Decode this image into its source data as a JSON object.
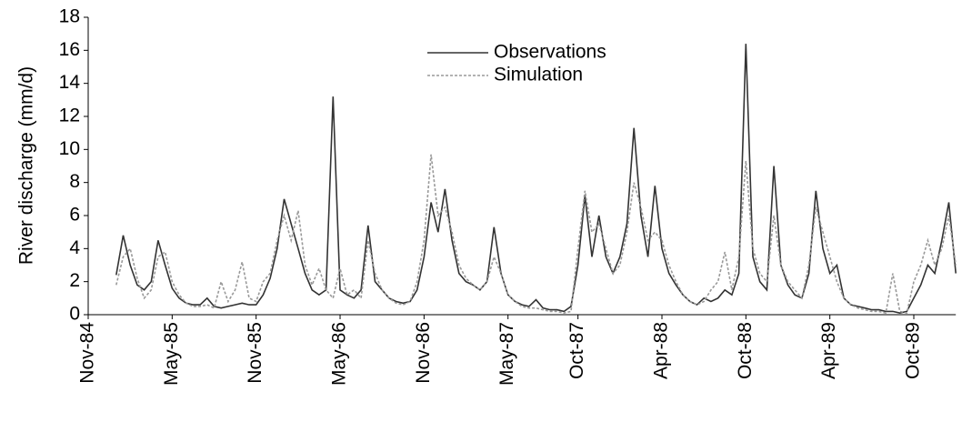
{
  "chart_data": {
    "type": "line",
    "y_label": "River discharge (mm/d)",
    "categories": [
      "Nov-84",
      null,
      null,
      null,
      null,
      null,
      null,
      null,
      null,
      null,
      null,
      null,
      "May-85",
      null,
      null,
      null,
      null,
      null,
      null,
      null,
      null,
      null,
      null,
      null,
      "Nov-85",
      null,
      null,
      null,
      null,
      null,
      null,
      null,
      null,
      null,
      null,
      null,
      "May-86",
      null,
      null,
      null,
      null,
      null,
      null,
      null,
      null,
      null,
      null,
      null,
      "Nov-86",
      null,
      null,
      null,
      null,
      null,
      null,
      null,
      null,
      null,
      null,
      null,
      "May-87",
      null,
      null,
      null,
      null,
      null,
      null,
      null,
      null,
      null,
      "Oct-87",
      null,
      null,
      null,
      null,
      null,
      null,
      null,
      null,
      null,
      null,
      null,
      "Apr-88",
      null,
      null,
      null,
      null,
      null,
      null,
      null,
      null,
      null,
      null,
      null,
      "Oct-88",
      null,
      null,
      null,
      null,
      null,
      null,
      null,
      null,
      null,
      null,
      null,
      "Apr-89",
      null,
      null,
      null,
      null,
      null,
      null,
      null,
      null,
      null,
      null,
      null,
      "Oct-89",
      null,
      null,
      null,
      null,
      null,
      null
    ],
    "series": [
      {
        "name": "Observations",
        "color": "#333333",
        "style": "solid",
        "values": [
          null,
          null,
          null,
          null,
          2.4,
          4.8,
          3.0,
          1.8,
          1.5,
          2.0,
          4.5,
          3.0,
          1.6,
          1.0,
          0.7,
          0.6,
          0.6,
          1.0,
          0.5,
          0.4,
          0.5,
          0.6,
          0.7,
          0.6,
          0.6,
          1.2,
          2.2,
          4.0,
          7.0,
          5.5,
          4.0,
          2.5,
          1.5,
          1.2,
          1.5,
          13.2,
          1.5,
          1.2,
          1.0,
          1.5,
          5.4,
          2.0,
          1.5,
          1.0,
          0.8,
          0.7,
          0.8,
          1.5,
          3.5,
          6.8,
          5.0,
          7.6,
          4.5,
          2.5,
          2.0,
          1.8,
          1.5,
          2.0,
          5.3,
          2.5,
          1.2,
          0.8,
          0.6,
          0.5,
          0.9,
          0.4,
          0.3,
          0.3,
          0.2,
          0.5,
          3.0,
          7.2,
          3.5,
          6.0,
          3.5,
          2.5,
          3.5,
          5.5,
          11.3,
          6.0,
          3.5,
          7.8,
          4.0,
          2.5,
          1.8,
          1.2,
          0.8,
          0.6,
          1.0,
          0.8,
          1.0,
          1.5,
          1.2,
          2.5,
          16.4,
          3.5,
          2.0,
          1.5,
          9.0,
          3.0,
          1.8,
          1.2,
          1.0,
          2.5,
          7.5,
          4.0,
          2.5,
          3.0,
          1.0,
          0.6,
          0.5,
          0.4,
          0.3,
          0.3,
          0.2,
          0.2,
          0.1,
          0.2,
          1.0,
          1.8,
          3.0,
          2.5,
          4.5,
          6.8,
          2.5
        ]
      },
      {
        "name": "Simulation",
        "color": "#999999",
        "style": "dashed",
        "values": [
          null,
          null,
          null,
          null,
          1.8,
          3.5,
          4.0,
          2.2,
          1.0,
          1.5,
          3.5,
          3.8,
          2.0,
          1.2,
          0.7,
          0.5,
          0.5,
          0.6,
          0.4,
          2.0,
          0.8,
          1.5,
          3.2,
          1.0,
          0.8,
          2.0,
          2.5,
          4.5,
          6.0,
          4.5,
          6.3,
          3.0,
          1.8,
          2.8,
          1.5,
          1.0,
          2.8,
          1.2,
          1.5,
          1.0,
          4.5,
          2.5,
          1.5,
          1.0,
          0.7,
          0.6,
          0.8,
          2.0,
          4.5,
          9.7,
          6.0,
          6.5,
          5.0,
          3.0,
          2.2,
          1.8,
          1.5,
          2.0,
          3.5,
          2.5,
          1.2,
          0.8,
          0.5,
          0.4,
          0.4,
          0.3,
          0.2,
          0.2,
          0.1,
          0.2,
          4.0,
          7.5,
          5.0,
          5.5,
          4.0,
          2.5,
          3.0,
          5.0,
          8.0,
          6.5,
          4.5,
          5.0,
          4.5,
          3.0,
          2.0,
          1.2,
          0.8,
          0.6,
          0.8,
          1.5,
          2.0,
          3.8,
          1.5,
          3.5,
          9.3,
          4.0,
          2.5,
          2.0,
          6.0,
          3.0,
          2.0,
          1.5,
          1.0,
          3.0,
          6.5,
          5.0,
          3.5,
          2.0,
          1.0,
          0.6,
          0.4,
          0.3,
          0.2,
          0.2,
          0.1,
          2.5,
          0.2,
          0.1,
          2.0,
          3.0,
          4.5,
          3.0,
          4.0,
          6.0,
          3.0
        ]
      }
    ],
    "ylim": [
      0,
      18
    ],
    "yticks": [
      0,
      2,
      4,
      6,
      8,
      10,
      12,
      14,
      16,
      18
    ]
  }
}
